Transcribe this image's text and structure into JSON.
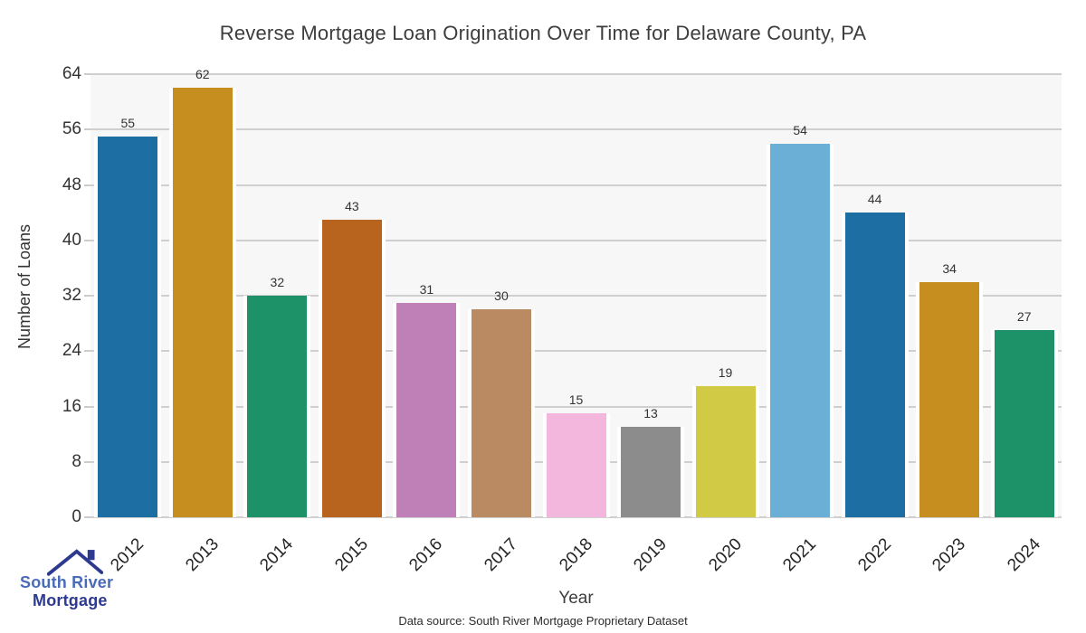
{
  "title": "Reverse Mortgage Loan Origination Over Time for Delaware County, PA",
  "chart_data": {
    "type": "bar",
    "title": "Reverse Mortgage Loan Origination Over Time for Delaware County, PA",
    "categories": [
      "2012",
      "2013",
      "2014",
      "2015",
      "2016",
      "2017",
      "2018",
      "2019",
      "2020",
      "2021",
      "2022",
      "2023",
      "2024"
    ],
    "values": [
      55,
      62,
      32,
      43,
      31,
      30,
      15,
      13,
      19,
      54,
      44,
      34,
      27
    ],
    "bar_colors": [
      "#1d6fa3",
      "#c68d1f",
      "#1d9168",
      "#b8641e",
      "#bf80b7",
      "#ba8a62",
      "#f3b7dd",
      "#8c8c8c",
      "#d0ca45",
      "#6cafd6",
      "#1d6fa3",
      "#c68d1f",
      "#1d9168"
    ],
    "xlabel": "Year",
    "ylabel": "Number of Loans",
    "ylim": [
      0,
      64
    ],
    "yticks": [
      0,
      8,
      16,
      24,
      32,
      40,
      48,
      56,
      64
    ],
    "grid": true,
    "legend": false,
    "plot_bg": "#f7f7f7",
    "gridline_color": "#cfcfcf"
  },
  "footer": {
    "source": "Data source: South River Mortgage Proprietary Dataset"
  },
  "logo": {
    "line1": "South River",
    "line2": "Mortgage",
    "text_color_1": "#4a6cb8",
    "text_color_2": "#2d3a90",
    "roof_color": "#2d3a90"
  }
}
